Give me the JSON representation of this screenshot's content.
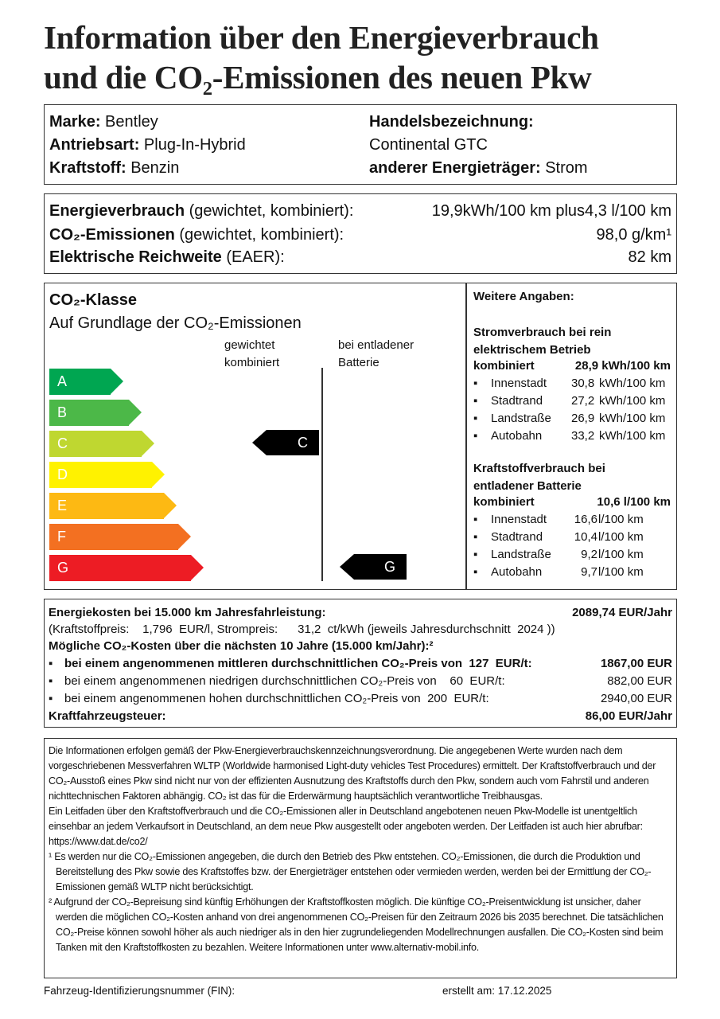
{
  "title": {
    "line1": "Information über den Energieverbrauch",
    "line2": "und die CO₂-Emissionen des neuen Pkw"
  },
  "vehicle": {
    "marke_label": "Marke:",
    "marke": "Bentley",
    "antrieb_label": "Antriebsart:",
    "antrieb": "Plug-In-Hybrid",
    "kraftstoff_label": "Kraftstoff:",
    "kraftstoff": "Benzin",
    "handel_label": "Handelsbezeichnung:",
    "handel": "Continental GTC",
    "energie_label": "anderer Energieträger:",
    "energie": "Strom"
  },
  "consumption": {
    "energie_label": "Energieverbrauch",
    "energie_note": "(gewichtet, kombiniert):",
    "energie_value": "19,9kWh/100 km plus4,3 l/100 km",
    "co2_label": "CO₂-Emissionen",
    "co2_note": "(gewichtet, kombiniert):",
    "co2_value": "98,0 g/km¹",
    "reich_label": "Elektrische Reichweite",
    "reich_note": "(EAER):",
    "reich_value": "82 km"
  },
  "co2_class": {
    "title": "CO₂-Klasse",
    "subtitle": "Auf Grundlage der CO₂-Emissionen",
    "col1": [
      "gewichtet",
      "kombiniert"
    ],
    "col2": [
      "bei entladener",
      "Batterie"
    ],
    "classes": [
      {
        "label": "A",
        "color": "#00a651"
      },
      {
        "label": "B",
        "color": "#4cb848"
      },
      {
        "label": "C",
        "color": "#bfd730"
      },
      {
        "label": "D",
        "color": "#fff200"
      },
      {
        "label": "E",
        "color": "#fdb913"
      },
      {
        "label": "F",
        "color": "#f37021"
      },
      {
        "label": "G",
        "color": "#ed1c24"
      }
    ],
    "weighted": "C",
    "discharged": "G"
  },
  "more": {
    "title": "Weitere Angaben:",
    "strom_title": [
      "Stromverbrauch bei rein",
      "elektrischem Betrieb"
    ],
    "strom_komb_label": "kombiniert",
    "strom_komb": "28,9 kWh/100 km",
    "strom": [
      {
        "label": "Innenstadt",
        "value": "30,8",
        "unit": "kWh/100 km"
      },
      {
        "label": "Stadtrand",
        "value": "27,2",
        "unit": "kWh/100 km"
      },
      {
        "label": "Landstraße",
        "value": "26,9",
        "unit": "kWh/100 km"
      },
      {
        "label": "Autobahn",
        "value": "33,2",
        "unit": "kWh/100 km"
      }
    ],
    "kraft_title": [
      "Kraftstoffverbrauch bei",
      "entladener Batterie"
    ],
    "kraft_komb_label": "kombiniert",
    "kraft_komb": "10,6  l/100 km",
    "kraft": [
      {
        "label": "Innenstadt",
        "value": "16,6",
        "unit": "l/100 km"
      },
      {
        "label": "Stadtrand",
        "value": "10,4",
        "unit": "l/100 km"
      },
      {
        "label": "Landstraße",
        "value": "9,2",
        "unit": "l/100 km"
      },
      {
        "label": "Autobahn",
        "value": "9,7",
        "unit": "l/100 km"
      }
    ]
  },
  "costs": {
    "energy_label": "Energiekosten bei 15.000 km Jahresfahrleistung:",
    "energy_value": "2089,74 EUR/Jahr",
    "prices": "(Kraftstoffpreis:    1,796  EUR/l, Strompreis:      31,2  ct/kWh (jeweils Jahresdurchschnitt  2024 ))",
    "co2_title": "Mögliche CO₂-Kosten über die nächsten 10 Jahre (15.000 km/Jahr):²",
    "items": [
      {
        "text": "bei einem angenommenen mittleren durchschnittlichen CO₂-Preis von  127  EUR/t:",
        "value": "1867,00 EUR"
      },
      {
        "text": "bei einem angenommenen niedrigen durchschnittlichen CO₂-Preis von    60  EUR/t:",
        "value": "882,00 EUR"
      },
      {
        "text": "bei einem angenommenen hohen durchschnittlichen CO₂-Preis von  200  EUR/t:",
        "value": "2940,00 EUR"
      }
    ],
    "tax_label": "Kraftfahrzeugsteuer:",
    "tax_value": "86,00 EUR/Jahr"
  },
  "notes": [
    "Die Informationen erfolgen gemäß der Pkw-Energieverbrauchskennzeichnungsverordnung. Die angegebenen Werte wurden nach dem vorgeschriebenen Messverfahren WLTP (Worldwide harmonised Light-duty vehicles Test Procedures) ermittelt. Der Kraftstoffverbrauch und der CO₂-Ausstoß eines Pkw sind nicht nur von der effizienten Ausnutzung des Kraftstoffs durch den Pkw, sondern auch vom Fahrstil und anderen nichttechnischen Faktoren abhängig. CO₂ ist das für die Erderwärmung hauptsächlich verantwortliche Treibhausgas.",
    "Ein Leitfaden über den Kraftstoffverbrauch und die CO₂-Emissionen aller in Deutschland angebotenen neuen Pkw-Modelle ist unentgeltlich einsehbar an jedem Verkaufsort in Deutschland, an dem neue Pkw ausgestellt oder angeboten werden. Der Leitfaden ist auch hier abrufbar:  https://www.dat.de/co2/",
    "¹ Es werden nur die CO₂-Emissionen angegeben, die durch den Betrieb des Pkw entstehen. CO₂-Emissionen, die durch die Produktion und Bereitstellung des Pkw sowie des Kraftstoffes bzw. der Energieträger entstehen oder vermieden werden, werden bei der Ermittlung der CO₂-Emissionen gemäß WLTP nicht berücksichtigt.",
    "² Aufgrund der CO₂-Bepreisung sind künftig Erhöhungen der Kraftstoffkosten möglich. Die künftige CO₂-Preisentwicklung ist unsicher, daher werden die möglichen CO₂-Kosten anhand von drei angenommenen CO₂-Preisen für den Zeitraum  2026  bis  2035   berechnet. Die tatsächlichen CO₂-Preise können sowohl höher als auch niedriger als in den hier zugrundeliegenden Modellrechnungen ausfallen. Die CO₂-Kosten sind beim Tanken mit den Kraftstoffkosten zu bezahlen. Weitere Informationen unter www.alternativ-mobil.info."
  ],
  "footer": {
    "fin_label": "Fahrzeug-Identifizierungsnummer (FIN):",
    "date_label": "erstellt am:",
    "date": "17.12.2025"
  }
}
